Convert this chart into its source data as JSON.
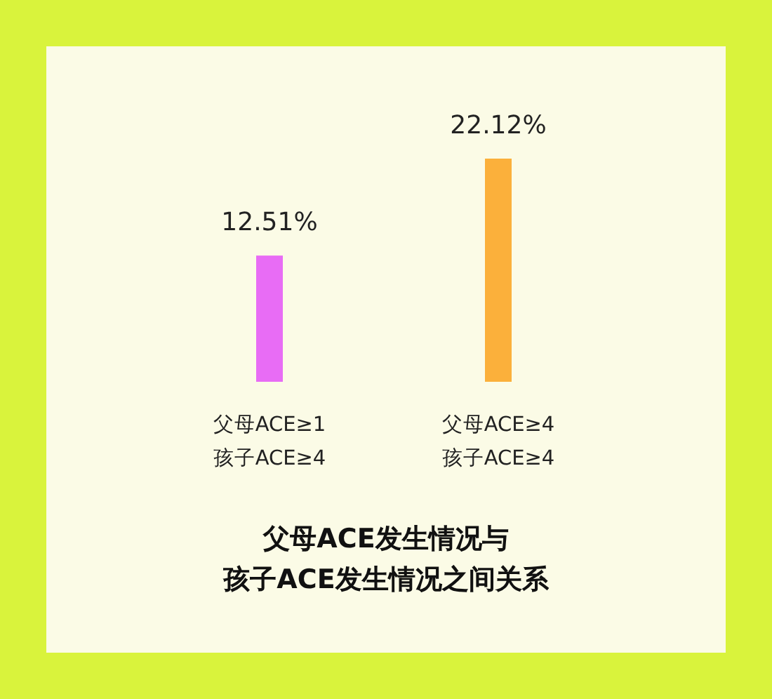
{
  "chart_data": {
    "type": "bar",
    "title": "父母ACE发生情况与",
    "subtitle": "孩子ACE发生情况之间关系",
    "categories": [
      "父母ACE≥1\n孩子ACE≥4",
      "父母ACE≥4\n孩子ACE≥4"
    ],
    "values": [
      12.51,
      22.12
    ],
    "colors": [
      "#e86cf5",
      "#fbb03b"
    ],
    "value_labels": [
      "12.51%",
      "22.12%"
    ]
  }
}
